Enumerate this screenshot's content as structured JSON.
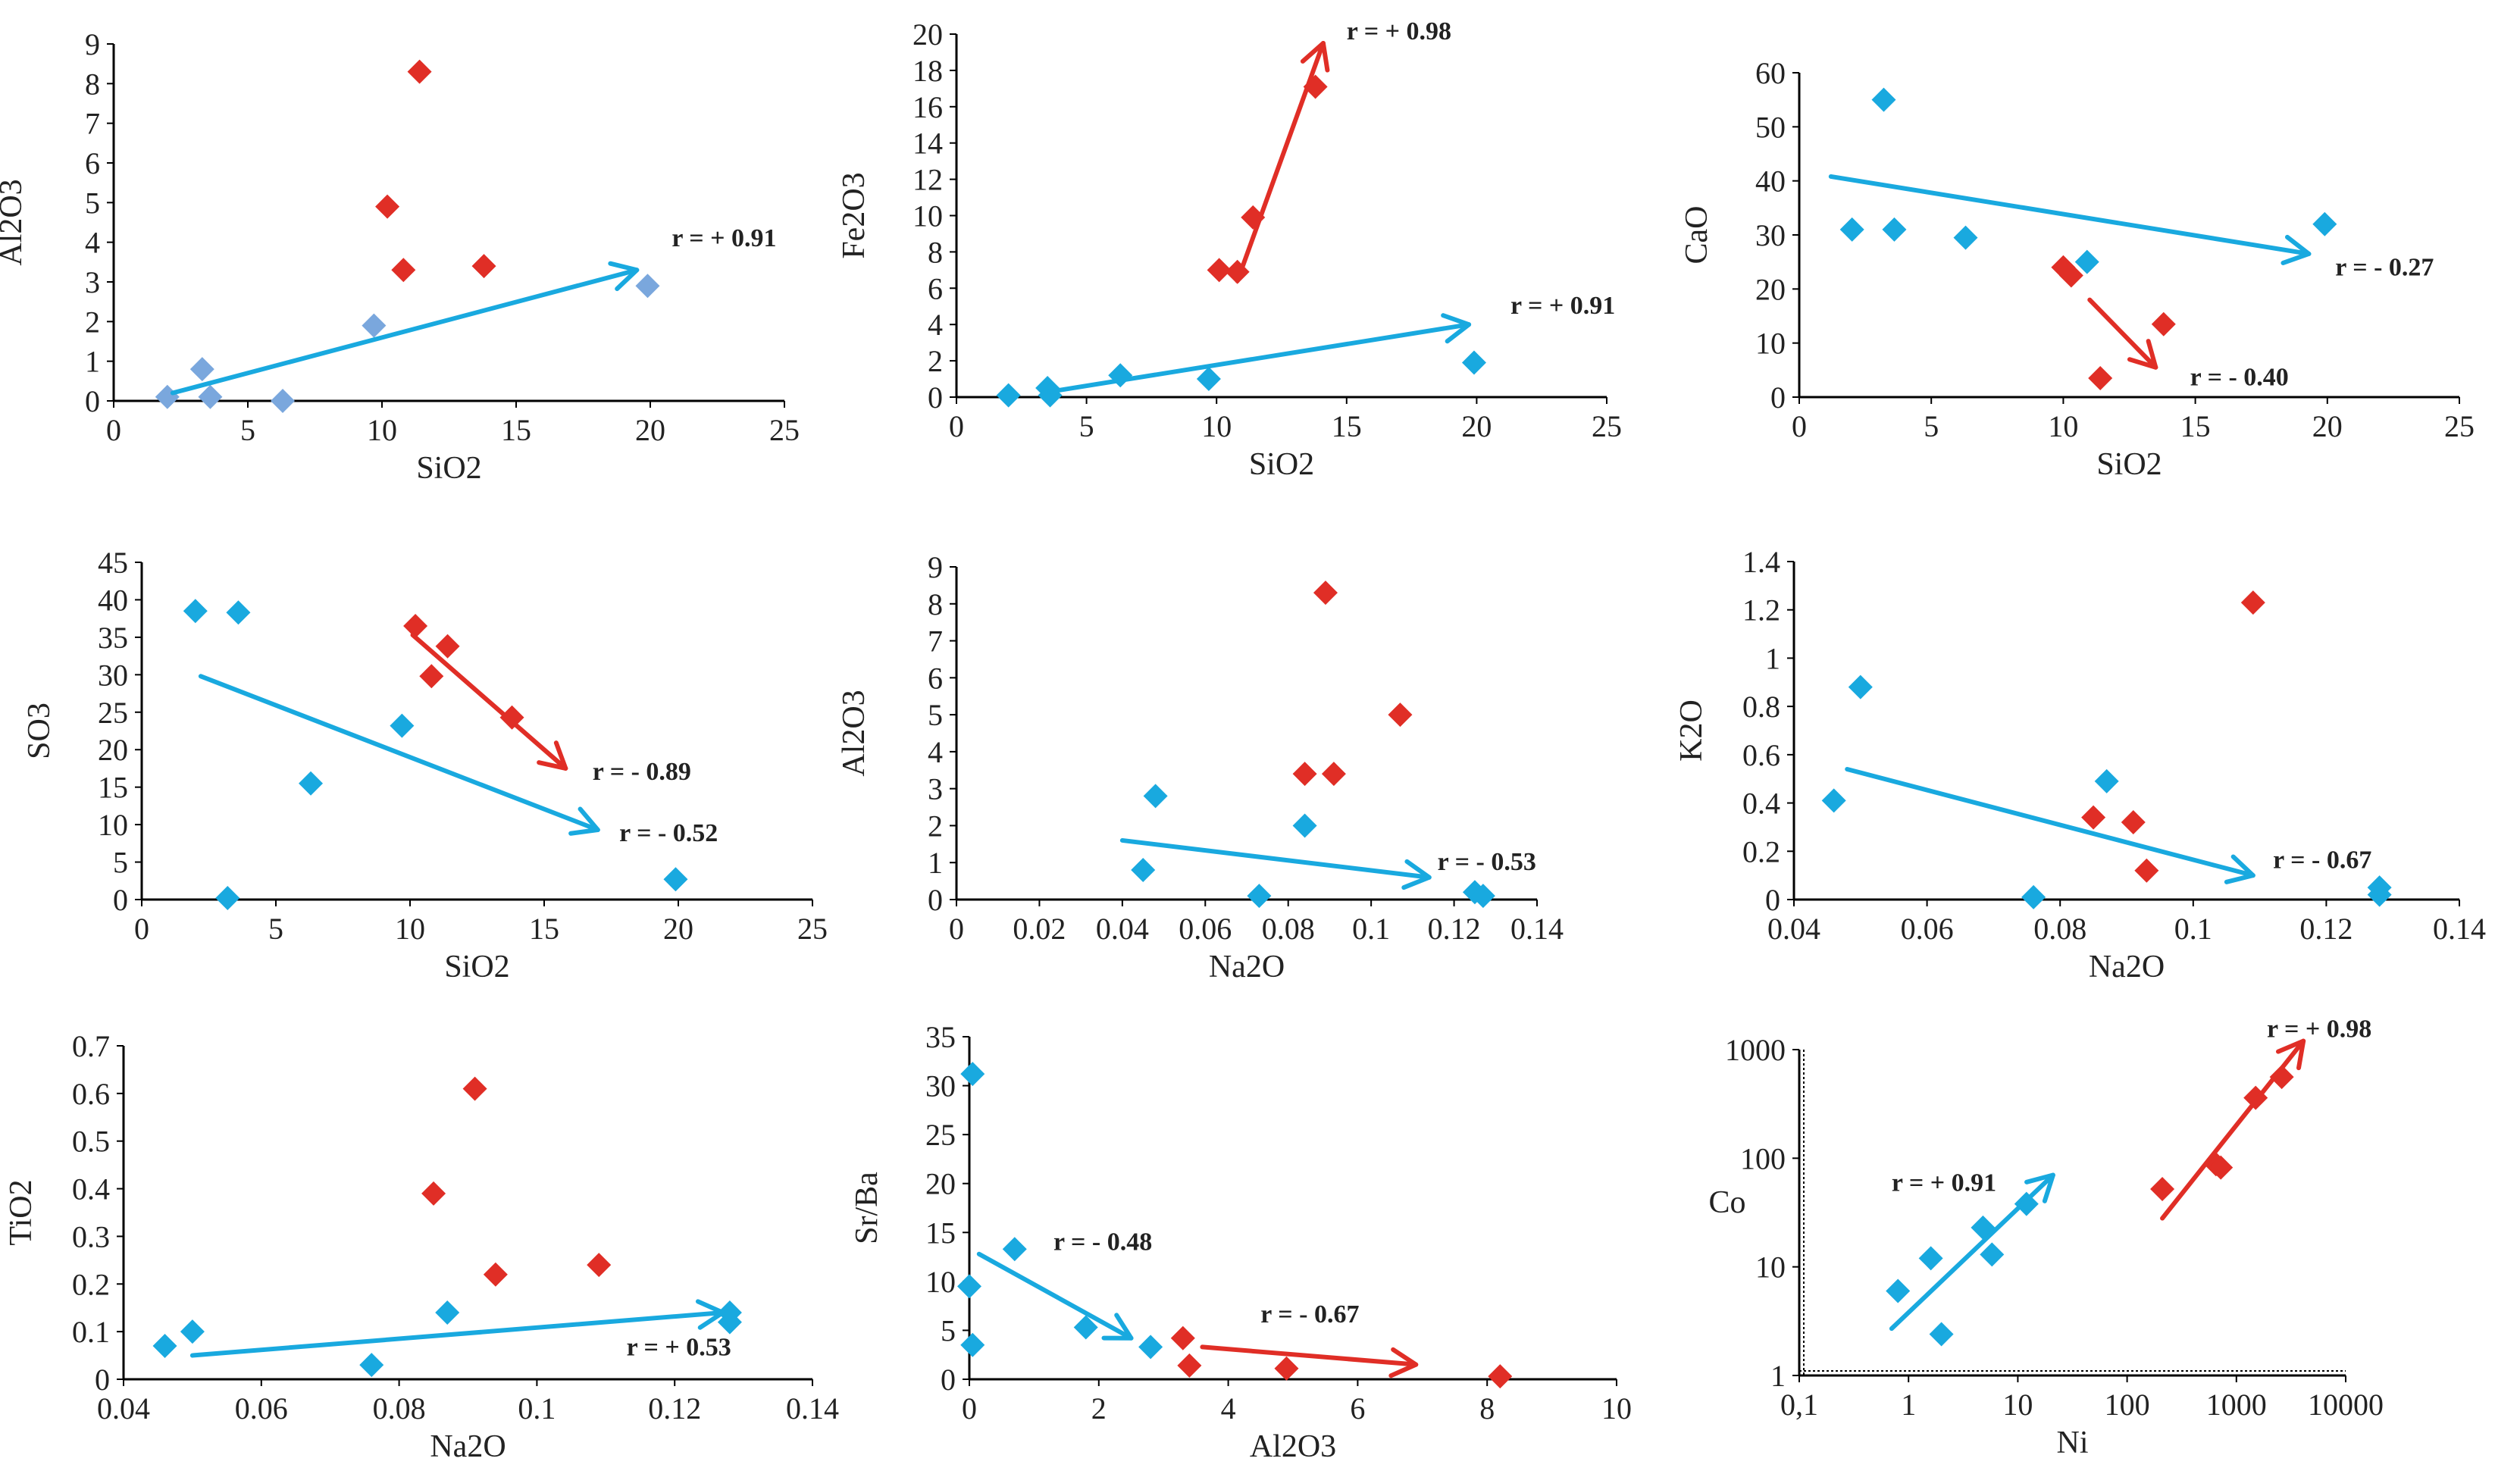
{
  "colors": {
    "blue": "#19a9df",
    "red": "#e02e26",
    "axis": "#000000"
  },
  "chart_data": [
    {
      "type": "scatter",
      "xlabel": "SiO2",
      "ylabel": "Al2O3",
      "xlim": [
        0,
        25
      ],
      "ylim": [
        0,
        9
      ],
      "xticks": [
        "0",
        "5",
        "10",
        "15",
        "20",
        "25"
      ],
      "yticks": [
        "0",
        "1",
        "2",
        "3",
        "4",
        "5",
        "6",
        "7",
        "8",
        "9"
      ],
      "series": [
        {
          "name": "blue",
          "color": "#7aa7dd",
          "points": [
            [
              2,
              0.1
            ],
            [
              3.3,
              0.8
            ],
            [
              3.6,
              0.1
            ],
            [
              6.3,
              0
            ],
            [
              9.7,
              1.9
            ],
            [
              19.9,
              2.9
            ]
          ]
        },
        {
          "name": "red",
          "color": "#e02e26",
          "points": [
            [
              10.2,
              4.9
            ],
            [
              10.8,
              3.3
            ],
            [
              11.4,
              8.3
            ],
            [
              13.8,
              3.4
            ]
          ]
        }
      ],
      "trends": [
        {
          "color": "#19a9df",
          "from": [
            2.2,
            0.2
          ],
          "to": [
            19.5,
            3.3
          ],
          "label": "r = + 0.91",
          "label_at": [
            20.8,
            3.9
          ]
        }
      ]
    },
    {
      "type": "scatter",
      "xlabel": "SiO2",
      "ylabel": "Fe2O3",
      "xlim": [
        0,
        25
      ],
      "ylim": [
        0,
        20
      ],
      "xticks": [
        "0",
        "5",
        "10",
        "15",
        "20",
        "25"
      ],
      "yticks": [
        "0",
        "2",
        "4",
        "6",
        "8",
        "10",
        "12",
        "14",
        "16",
        "18",
        "20"
      ],
      "series": [
        {
          "name": "blue",
          "color": "#19a9df",
          "points": [
            [
              2,
              0.1
            ],
            [
              3.5,
              0.5
            ],
            [
              3.6,
              0.1
            ],
            [
              6.3,
              1.2
            ],
            [
              9.7,
              1
            ],
            [
              19.9,
              1.9
            ]
          ]
        },
        {
          "name": "red",
          "color": "#e02e26",
          "points": [
            [
              10.1,
              7
            ],
            [
              10.8,
              6.9
            ],
            [
              11.4,
              9.9
            ],
            [
              13.8,
              17.1
            ]
          ]
        }
      ],
      "trends": [
        {
          "color": "#e02e26",
          "from": [
            10.8,
            6.4
          ],
          "to": [
            14.1,
            19.5
          ],
          "label": "r = + 0.98",
          "label_at": [
            15,
            19.7
          ]
        },
        {
          "color": "#19a9df",
          "from": [
            3.6,
            0.3
          ],
          "to": [
            19.7,
            4.0
          ],
          "label": "r = + 0.91",
          "label_at": [
            21.3,
            4.6
          ]
        }
      ]
    },
    {
      "type": "scatter",
      "xlabel": "SiO2",
      "ylabel": "CaO",
      "xlim": [
        0,
        25
      ],
      "ylim": [
        0,
        60
      ],
      "xticks": [
        "0",
        "5",
        "10",
        "15",
        "20",
        "25"
      ],
      "yticks": [
        "0",
        "10",
        "20",
        "30",
        "40",
        "50",
        "60"
      ],
      "series": [
        {
          "name": "blue",
          "color": "#19a9df",
          "points": [
            [
              2,
              31
            ],
            [
              3.2,
              55
            ],
            [
              3.6,
              31
            ],
            [
              6.3,
              29.5
            ],
            [
              10.9,
              25
            ],
            [
              19.9,
              32
            ]
          ]
        },
        {
          "name": "red",
          "color": "#e02e26",
          "points": [
            [
              10,
              24
            ],
            [
              10.3,
              22.5
            ],
            [
              11.4,
              3.5
            ],
            [
              13.8,
              13.5
            ]
          ]
        }
      ],
      "trends": [
        {
          "color": "#19a9df",
          "from": [
            1.2,
            40.8
          ],
          "to": [
            19.3,
            26.5
          ],
          "label": "r = - 0.27",
          "label_at": [
            20.3,
            22.5
          ]
        },
        {
          "color": "#e02e26",
          "from": [
            11,
            18
          ],
          "to": [
            13.5,
            5.5
          ],
          "label": "r = - 0.40",
          "label_at": [
            14.8,
            2.2
          ]
        }
      ]
    },
    {
      "type": "scatter",
      "xlabel": "SiO2",
      "ylabel": "SO3",
      "xlim": [
        0,
        25
      ],
      "ylim": [
        0,
        45
      ],
      "xticks": [
        "0",
        "5",
        "10",
        "15",
        "20",
        "25"
      ],
      "yticks": [
        "0",
        "5",
        "10",
        "15",
        "20",
        "25",
        "30",
        "35",
        "40",
        "45"
      ],
      "series": [
        {
          "name": "blue",
          "color": "#19a9df",
          "points": [
            [
              2,
              38.5
            ],
            [
              3.2,
              0.2
            ],
            [
              3.6,
              38.3
            ],
            [
              6.3,
              15.5
            ],
            [
              9.7,
              23.2
            ],
            [
              19.9,
              2.7
            ]
          ]
        },
        {
          "name": "red",
          "color": "#e02e26",
          "points": [
            [
              10.2,
              36.5
            ],
            [
              10.8,
              29.8
            ],
            [
              11.4,
              33.8
            ],
            [
              13.8,
              24.3
            ]
          ]
        }
      ],
      "trends": [
        {
          "color": "#19a9df",
          "from": [
            2.2,
            29.8
          ],
          "to": [
            17,
            9.3
          ],
          "label": "r = - 0.52",
          "label_at": [
            17.8,
            7.8
          ]
        },
        {
          "color": "#e02e26",
          "from": [
            10.1,
            35.3
          ],
          "to": [
            15.8,
            17.5
          ],
          "label": "r = - 0.89",
          "label_at": [
            16.8,
            16
          ]
        }
      ]
    },
    {
      "type": "scatter",
      "xlabel": "Na2O",
      "ylabel": "Al2O3",
      "xlim": [
        0,
        0.14
      ],
      "ylim": [
        0,
        9
      ],
      "xticks": [
        "0",
        "0.02",
        "0.04",
        "0.06",
        "0.08",
        "0.1",
        "0.12",
        "0.14"
      ],
      "yticks": [
        "0",
        "1",
        "2",
        "3",
        "4",
        "5",
        "6",
        "7",
        "8",
        "9"
      ],
      "series": [
        {
          "name": "blue",
          "color": "#19a9df",
          "points": [
            [
              0.045,
              0.8
            ],
            [
              0.048,
              2.8
            ],
            [
              0.073,
              0.1
            ],
            [
              0.084,
              2
            ],
            [
              0.125,
              0.2
            ],
            [
              0.127,
              0.1
            ]
          ]
        },
        {
          "name": "red",
          "color": "#e02e26",
          "points": [
            [
              0.084,
              3.4
            ],
            [
              0.089,
              8.3
            ],
            [
              0.091,
              3.4
            ],
            [
              0.107,
              5
            ]
          ]
        }
      ],
      "trends": [
        {
          "color": "#19a9df",
          "from": [
            0.04,
            1.6
          ],
          "to": [
            0.114,
            0.6
          ],
          "label": "r = - 0.53",
          "label_at": [
            0.116,
            0.8
          ]
        }
      ]
    },
    {
      "type": "scatter",
      "xlabel": "Na2O",
      "ylabel": "K2O",
      "xlim": [
        0.04,
        0.14
      ],
      "ylim": [
        0,
        1.4
      ],
      "xticks": [
        "0.04",
        "0.06",
        "0.08",
        "0.1",
        "0.12",
        "0.14"
      ],
      "yticks": [
        "0",
        "0.2",
        "0.4",
        "0.6",
        "0.8",
        "1",
        "1.2",
        "1.4"
      ],
      "series": [
        {
          "name": "blue",
          "color": "#19a9df",
          "points": [
            [
              0.046,
              0.41
            ],
            [
              0.05,
              0.88
            ],
            [
              0.076,
              0.01
            ],
            [
              0.087,
              0.49
            ],
            [
              0.128,
              0.05
            ],
            [
              0.128,
              0.02
            ]
          ]
        },
        {
          "name": "red",
          "color": "#e02e26",
          "points": [
            [
              0.085,
              0.34
            ],
            [
              0.091,
              0.32
            ],
            [
              0.093,
              0.12
            ],
            [
              0.109,
              1.23
            ]
          ]
        }
      ],
      "trends": [
        {
          "color": "#19a9df",
          "from": [
            0.048,
            0.54
          ],
          "to": [
            0.109,
            0.1
          ],
          "label": "r = - 0.67",
          "label_at": [
            0.112,
            0.13
          ]
        }
      ]
    },
    {
      "type": "scatter",
      "xlabel": "Na2O",
      "ylabel": "TiO2",
      "xlim": [
        0.04,
        0.14
      ],
      "ylim": [
        0,
        0.7
      ],
      "xticks": [
        "0.04",
        "0.06",
        "0.08",
        "0.1",
        "0.12",
        "0.14"
      ],
      "yticks": [
        "0",
        "0.1",
        "0.2",
        "0.3",
        "0.4",
        "0.5",
        "0.6",
        "0.7"
      ],
      "series": [
        {
          "name": "blue",
          "color": "#19a9df",
          "points": [
            [
              0.046,
              0.07
            ],
            [
              0.05,
              0.1
            ],
            [
              0.076,
              0.03
            ],
            [
              0.087,
              0.14
            ],
            [
              0.128,
              0.14
            ],
            [
              0.128,
              0.12
            ]
          ]
        },
        {
          "name": "red",
          "color": "#e02e26",
          "points": [
            [
              0.085,
              0.39
            ],
            [
              0.091,
              0.61
            ],
            [
              0.094,
              0.22
            ],
            [
              0.109,
              0.24
            ]
          ]
        }
      ],
      "trends": [
        {
          "color": "#19a9df",
          "from": [
            0.05,
            0.05
          ],
          "to": [
            0.127,
            0.14
          ],
          "label": "r = + 0.53",
          "label_at": [
            0.113,
            0.05
          ]
        }
      ]
    },
    {
      "type": "scatter",
      "xlabel": "Al2O3",
      "ylabel": "Sr/Ba",
      "xlim": [
        0,
        10
      ],
      "ylim": [
        0,
        35
      ],
      "xticks": [
        "0",
        "2",
        "4",
        "6",
        "8",
        "10"
      ],
      "yticks": [
        "0",
        "5",
        "10",
        "15",
        "20",
        "25",
        "30",
        "35"
      ],
      "series": [
        {
          "name": "blue",
          "color": "#19a9df",
          "points": [
            [
              0,
              9.5
            ],
            [
              0.05,
              3.5
            ],
            [
              0.05,
              31.2
            ],
            [
              0.7,
              13.3
            ],
            [
              1.8,
              5.3
            ],
            [
              2.8,
              3.3
            ]
          ]
        },
        {
          "name": "red",
          "color": "#e02e26",
          "points": [
            [
              3.3,
              4.2
            ],
            [
              3.4,
              1.4
            ],
            [
              4.9,
              1.1
            ],
            [
              8.2,
              0.3
            ]
          ]
        }
      ],
      "trends": [
        {
          "color": "#19a9df",
          "from": [
            0.15,
            12.8
          ],
          "to": [
            2.5,
            4.2
          ],
          "label": "r = - 0.48",
          "label_at": [
            1.3,
            13.2
          ]
        },
        {
          "color": "#e02e26",
          "from": [
            3.6,
            3.3
          ],
          "to": [
            6.9,
            1.5
          ],
          "label": "r = - 0.67",
          "label_at": [
            4.5,
            5.8
          ]
        }
      ]
    },
    {
      "type": "scatter",
      "scale": "log",
      "xlabel": "Ni",
      "ylabel": "Co",
      "xlim": [
        0.1,
        10000
      ],
      "ylim": [
        1,
        1000
      ],
      "xticks": [
        "0,1",
        "1",
        "10",
        "100",
        "1000",
        "10000"
      ],
      "yticks": [
        "1",
        "10",
        "100",
        "1000"
      ],
      "series": [
        {
          "name": "blue",
          "color": "#19a9df",
          "points": [
            [
              0.8,
              6
            ],
            [
              1.6,
              12
            ],
            [
              2,
              2.4
            ],
            [
              4.8,
              23
            ],
            [
              5.8,
              13
            ],
            [
              12,
              38
            ]
          ]
        },
        {
          "name": "red",
          "color": "#e02e26",
          "points": [
            [
              210,
              52
            ],
            [
              650,
              88
            ],
            [
              720,
              82
            ],
            [
              1500,
              360
            ],
            [
              2600,
              560
            ]
          ]
        }
      ],
      "trends": [
        {
          "color": "#19a9df",
          "from": [
            0.7,
            2.7
          ],
          "to": [
            21,
            70
          ],
          "label": "r = + 0.91",
          "label_at": [
            0.7,
            50
          ]
        },
        {
          "color": "#e02e26",
          "from": [
            210,
            28
          ],
          "to": [
            4100,
            1200
          ],
          "label": "r = + 0.98",
          "label_at": [
            1900,
            1300
          ]
        }
      ]
    }
  ]
}
